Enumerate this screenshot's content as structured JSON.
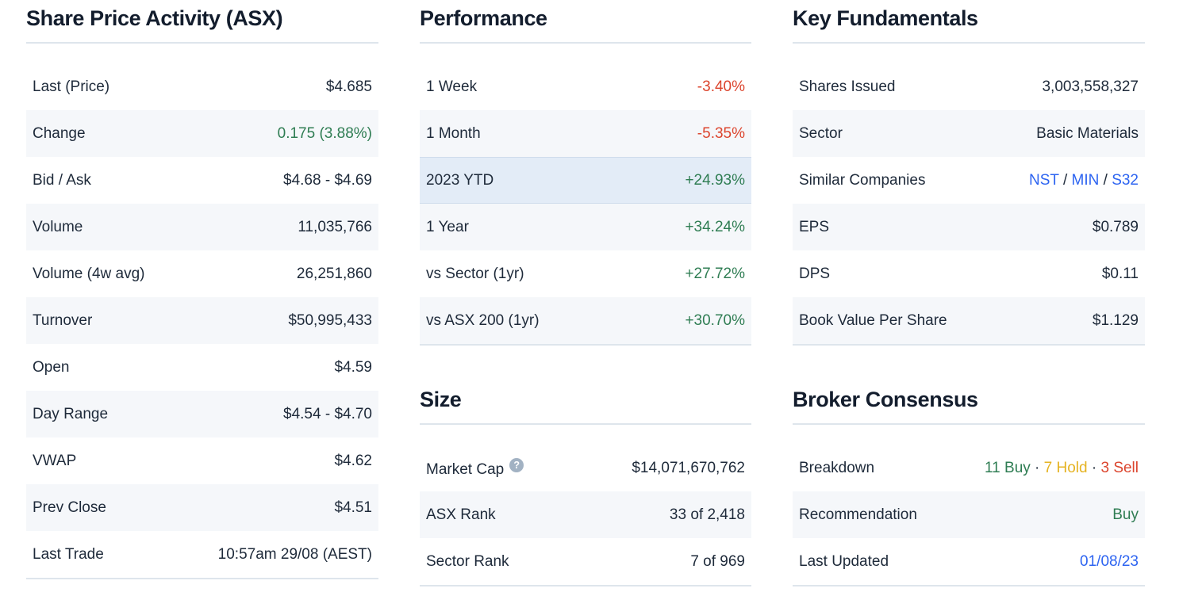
{
  "colors": {
    "positive": "#2f7d53",
    "negative": "#dc452e",
    "hold": "#e5b322",
    "link": "#2d64f1",
    "text": "#1e2a3a",
    "heading": "#131d2d",
    "zebra_bg": "#f5f7fa",
    "highlight_bg": "#e3ecf7",
    "divider": "#dee5ec",
    "help_bg": "#a2b2c3"
  },
  "icons": {
    "help_glyph": "?"
  },
  "sections": {
    "share_price": {
      "title": "Share Price Activity (ASX)",
      "rows": [
        {
          "label": "Last (Price)",
          "value": "$4.685"
        },
        {
          "label": "Change",
          "value": "0.175 (3.88%)",
          "value_color": "positive"
        },
        {
          "label": "Bid / Ask",
          "value": "$4.68 - $4.69"
        },
        {
          "label": "Volume",
          "value": "11,035,766"
        },
        {
          "label": "Volume (4w avg)",
          "value": "26,251,860"
        },
        {
          "label": "Turnover",
          "value": "$50,995,433"
        },
        {
          "label": "Open",
          "value": "$4.59"
        },
        {
          "label": "Day Range",
          "value": "$4.54 - $4.70"
        },
        {
          "label": "VWAP",
          "value": "$4.62"
        },
        {
          "label": "Prev Close",
          "value": "$4.51"
        },
        {
          "label": "Last Trade",
          "value": "10:57am 29/08 (AEST)"
        }
      ]
    },
    "performance": {
      "title": "Performance",
      "rows": [
        {
          "label": "1 Week",
          "value": "-3.40%",
          "value_color": "negative"
        },
        {
          "label": "1 Month",
          "value": "-5.35%",
          "value_color": "negative"
        },
        {
          "label": "2023 YTD",
          "value": "+24.93%",
          "value_color": "positive",
          "highlighted": true
        },
        {
          "label": "1 Year",
          "value": "+34.24%",
          "value_color": "positive"
        },
        {
          "label": "vs Sector (1yr)",
          "value": "+27.72%",
          "value_color": "positive"
        },
        {
          "label": "vs ASX 200 (1yr)",
          "value": "+30.70%",
          "value_color": "positive"
        }
      ]
    },
    "size": {
      "title": "Size",
      "rows": [
        {
          "label": "Market Cap",
          "value": "$14,071,670,762",
          "has_help_icon": true
        },
        {
          "label": "ASX Rank",
          "value": "33 of 2,418"
        },
        {
          "label": "Sector Rank",
          "value": "7 of 969"
        }
      ]
    },
    "fundamentals": {
      "title": "Key Fundamentals",
      "rows": [
        {
          "label": "Shares Issued",
          "value": "3,003,558,327"
        },
        {
          "label": "Sector",
          "value": "Basic Materials"
        },
        {
          "label": "Similar Companies",
          "links": [
            "NST",
            "MIN",
            "S32"
          ],
          "separator": " / "
        },
        {
          "label": "EPS",
          "value": "$0.789"
        },
        {
          "label": "DPS",
          "value": "$0.11"
        },
        {
          "label": "Book Value Per Share",
          "value": "$1.129"
        }
      ]
    },
    "broker": {
      "title": "Broker Consensus",
      "rows": [
        {
          "label": "Breakdown",
          "separator": " · ",
          "breakdown": [
            {
              "text": "11 Buy",
              "color": "positive"
            },
            {
              "text": "7 Hold",
              "color": "hold"
            },
            {
              "text": "3 Sell",
              "color": "negative"
            }
          ]
        },
        {
          "label": "Recommendation",
          "value": "Buy",
          "value_color": "positive"
        },
        {
          "label": "Last Updated",
          "value": "01/08/23",
          "is_link": true
        }
      ]
    }
  }
}
